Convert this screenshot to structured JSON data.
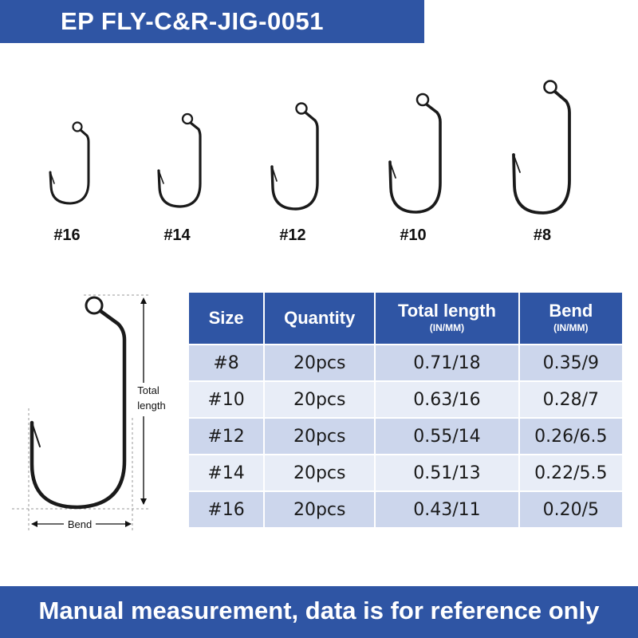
{
  "title": "EP FLY-C&R-JIG-0051",
  "hook_sizes": [
    "#16",
    "#14",
    "#12",
    "#10",
    "#8"
  ],
  "diagram": {
    "total_label_line1": "Total",
    "total_label_line2": "length",
    "bend_label": "Bend"
  },
  "table": {
    "headers": [
      {
        "main": "Size",
        "sub": ""
      },
      {
        "main": "Quantity",
        "sub": ""
      },
      {
        "main": "Total length",
        "sub": "(IN/MM)"
      },
      {
        "main": "Bend",
        "sub": "(IN/MM)"
      }
    ],
    "rows": [
      {
        "size": "#8",
        "quantity": "20pcs",
        "total_length": "0.71/18",
        "bend": "0.35/9"
      },
      {
        "size": "#10",
        "quantity": "20pcs",
        "total_length": "0.63/16",
        "bend": "0.28/7"
      },
      {
        "size": "#12",
        "quantity": "20pcs",
        "total_length": "0.55/14",
        "bend": "0.26/6.5"
      },
      {
        "size": "#14",
        "quantity": "20pcs",
        "total_length": "0.51/13",
        "bend": "0.22/5.5"
      },
      {
        "size": "#16",
        "quantity": "20pcs",
        "total_length": "0.43/11",
        "bend": "0.20/5"
      }
    ]
  },
  "footer": "Manual measurement, data is for reference only",
  "colors": {
    "brand_blue": "#2f55a4",
    "row_dark": "#ccd6ec",
    "row_light": "#e8edf7"
  }
}
